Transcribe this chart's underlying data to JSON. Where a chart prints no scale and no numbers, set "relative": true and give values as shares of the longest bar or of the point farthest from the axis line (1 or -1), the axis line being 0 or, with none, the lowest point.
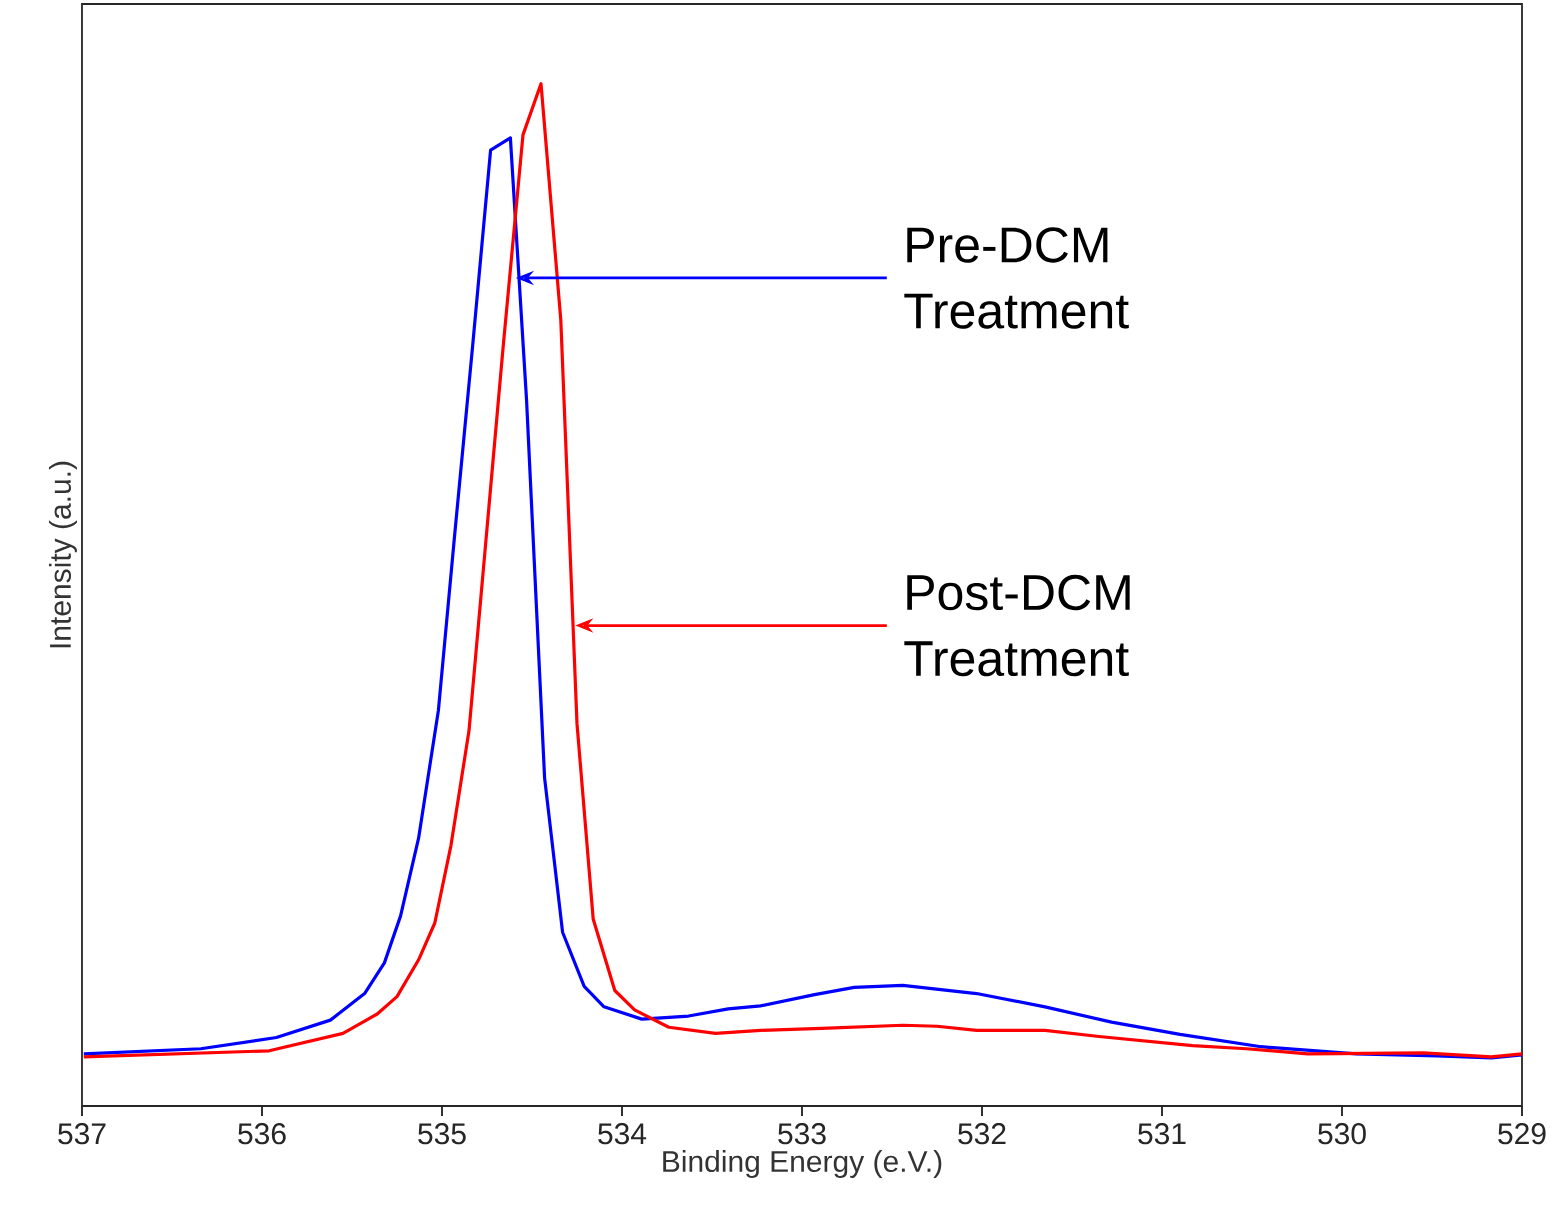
{
  "chart_data": {
    "type": "line",
    "xlabel": "Binding Energy (e.V.)",
    "ylabel": "Intensity (a.u.)",
    "relative": true,
    "xlim": [
      537,
      529
    ],
    "xticks": [
      537,
      536,
      535,
      534,
      533,
      532,
      531,
      530,
      529
    ],
    "tick_labels": "x",
    "annotations": [
      {
        "text": "Pre-DCM Treatment",
        "x": 534.59,
        "y": 0.81
      },
      {
        "text": "Post-DCM Treatment",
        "x": 534.26,
        "y": 0.47
      }
    ],
    "series": [
      {
        "color": "#0000ff",
        "x": [
          536.99,
          536.34,
          535.92,
          535.62,
          535.43,
          535.32,
          535.23,
          535.13,
          535.02,
          534.93,
          534.83,
          534.73,
          534.62,
          534.53,
          534.43,
          534.33,
          534.21,
          534.1,
          533.89,
          533.63,
          533.41,
          533.23,
          532.93,
          532.71,
          532.44,
          532.03,
          531.65,
          531.28,
          530.9,
          530.45,
          529.92,
          529.47,
          529.17,
          529.0
        ],
        "values": [
          0.051,
          0.056,
          0.067,
          0.084,
          0.11,
          0.14,
          0.186,
          0.262,
          0.387,
          0.558,
          0.743,
          0.935,
          0.947,
          0.69,
          0.321,
          0.17,
          0.117,
          0.097,
          0.085,
          0.088,
          0.095,
          0.098,
          0.109,
          0.116,
          0.118,
          0.11,
          0.097,
          0.082,
          0.07,
          0.058,
          0.051,
          0.049,
          0.047,
          0.05
        ]
      },
      {
        "color": "#ff0000",
        "x": [
          536.99,
          535.96,
          535.55,
          535.36,
          535.25,
          535.13,
          535.04,
          534.95,
          534.85,
          534.76,
          534.66,
          534.55,
          534.45,
          534.34,
          534.25,
          534.16,
          534.04,
          533.93,
          533.74,
          533.48,
          533.23,
          532.89,
          532.44,
          532.25,
          532.03,
          531.65,
          531.35,
          530.83,
          530.53,
          530.19,
          529.55,
          529.17,
          529.0
        ],
        "values": [
          0.048,
          0.054,
          0.071,
          0.09,
          0.107,
          0.143,
          0.179,
          0.255,
          0.367,
          0.545,
          0.743,
          0.95,
          1.0,
          0.769,
          0.374,
          0.183,
          0.113,
          0.094,
          0.077,
          0.071,
          0.074,
          0.076,
          0.079,
          0.078,
          0.074,
          0.074,
          0.068,
          0.059,
          0.056,
          0.051,
          0.052,
          0.048,
          0.051
        ]
      }
    ]
  }
}
